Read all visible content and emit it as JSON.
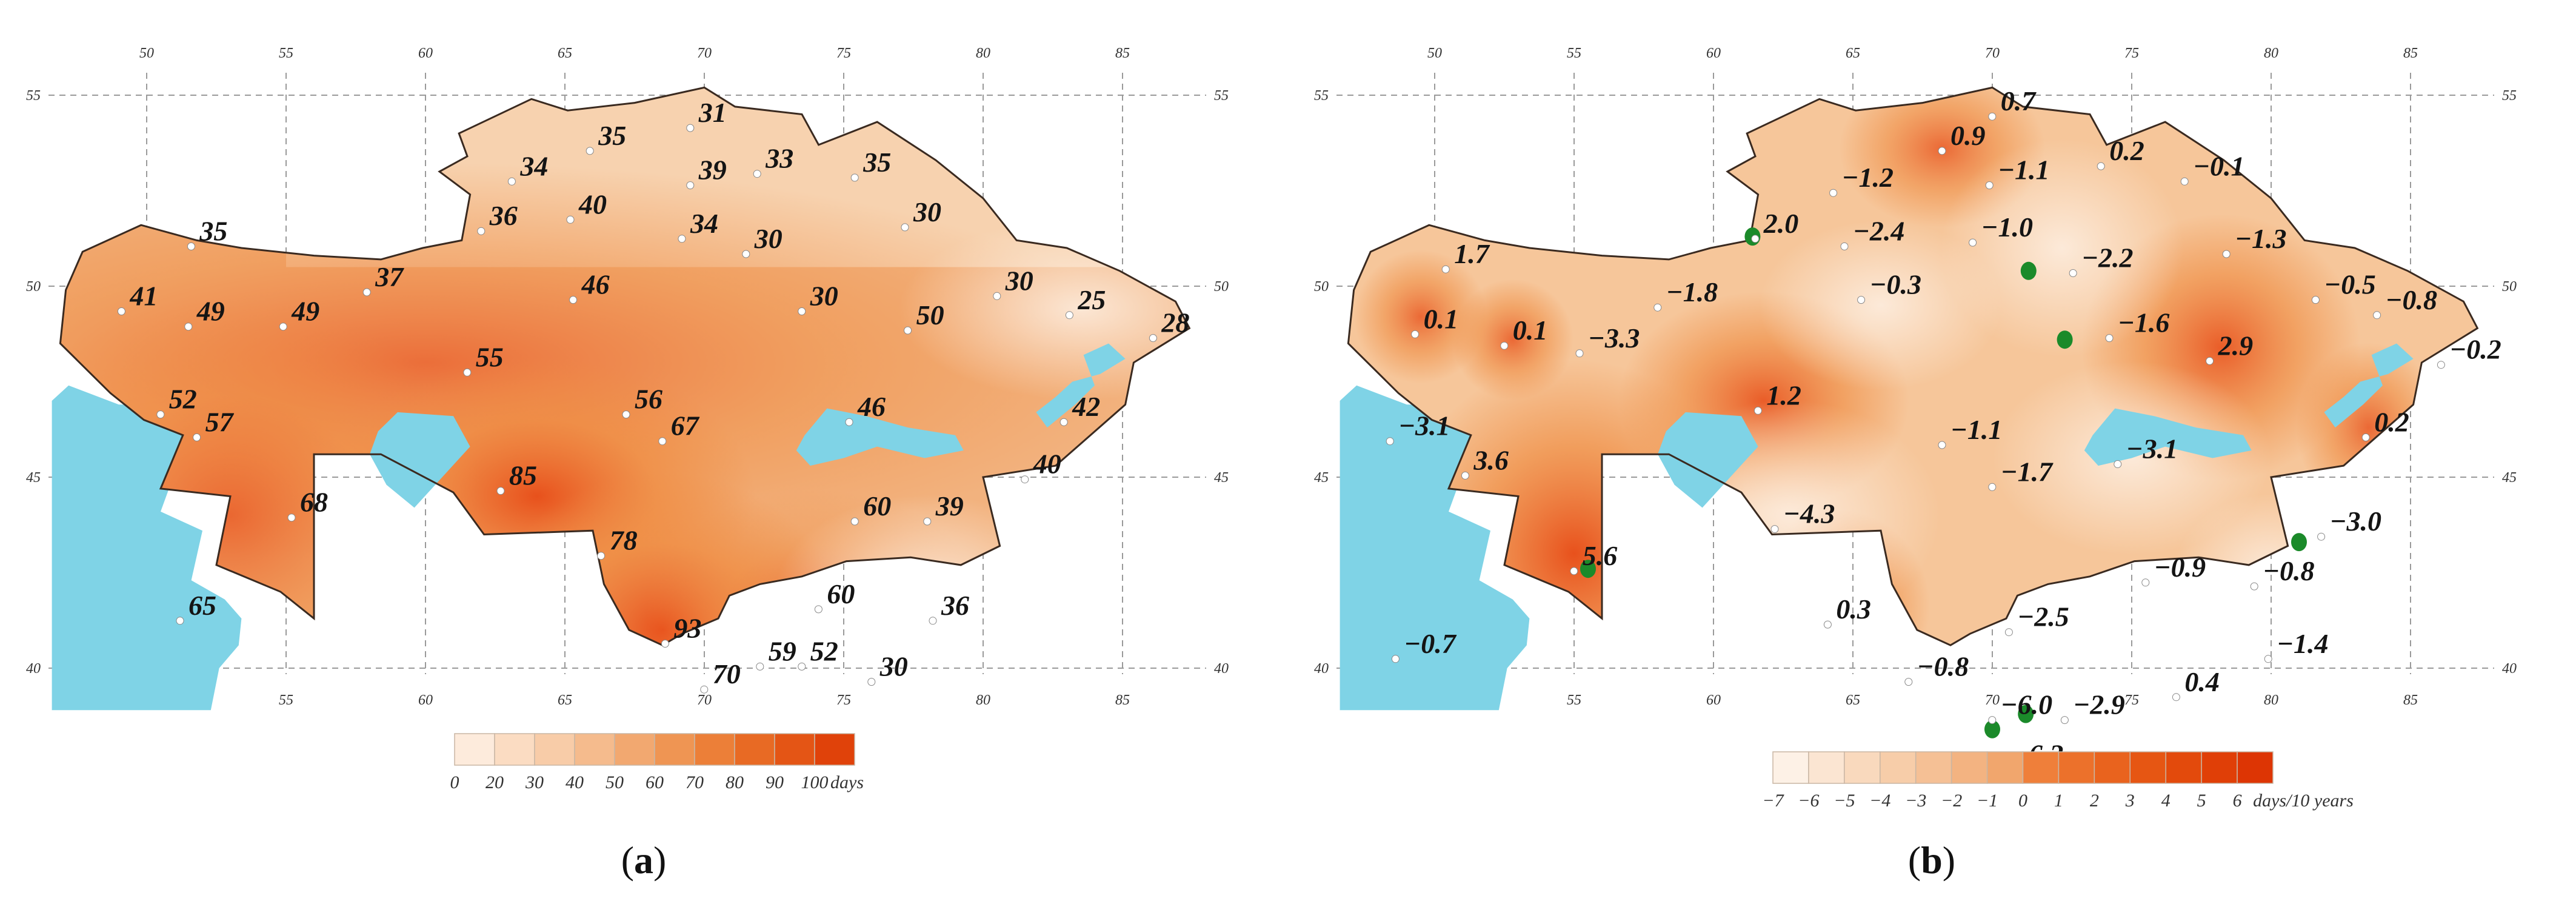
{
  "colors": {
    "water": "#7fd3e6",
    "land_light": "#f8dcc0",
    "land_mid": "#f2b27e",
    "land_strong": "#ef8c42",
    "land_red": "#e8511c",
    "border": "#3a2a20"
  },
  "panels": [
    {
      "caption_letter": "a",
      "grid": {
        "lon_top": [
          "50",
          "55",
          "60",
          "65",
          "70",
          "75",
          "80",
          "85"
        ],
        "lon_bottom": [
          "50",
          "55",
          "60",
          "65",
          "70",
          "75",
          "80",
          "85"
        ],
        "lat_left": [
          "55",
          "50",
          "45",
          "40"
        ],
        "lat_right": [
          "55",
          "50",
          "45",
          "40"
        ]
      },
      "legend": {
        "ticks": [
          "0",
          "20",
          "30",
          "40",
          "50",
          "60",
          "70",
          "80",
          "90",
          "100"
        ],
        "unit": "days",
        "colors": [
          "#fdebdc",
          "#fbdcc2",
          "#f8cca8",
          "#f5bb8d",
          "#f2a870",
          "#ef9553",
          "#ec7f38",
          "#e86a24",
          "#e45515",
          "#e0420a"
        ]
      },
      "stations": [
        {
          "label": "31",
          "lon": 69.8,
          "lat": 54.3
        },
        {
          "label": "35",
          "lon": 66.2,
          "lat": 53.7
        },
        {
          "label": "33",
          "lon": 72.2,
          "lat": 53.1
        },
        {
          "label": "35",
          "lon": 75.7,
          "lat": 53.0
        },
        {
          "label": "34",
          "lon": 63.4,
          "lat": 52.9
        },
        {
          "label": "39",
          "lon": 69.8,
          "lat": 52.8
        },
        {
          "label": "40",
          "lon": 65.5,
          "lat": 51.9
        },
        {
          "label": "36",
          "lon": 62.3,
          "lat": 51.6
        },
        {
          "label": "34",
          "lon": 69.5,
          "lat": 51.4
        },
        {
          "label": "30",
          "lon": 71.8,
          "lat": 51.0
        },
        {
          "label": "30",
          "lon": 77.5,
          "lat": 51.7
        },
        {
          "label": "35",
          "lon": 51.9,
          "lat": 51.2
        },
        {
          "label": "46",
          "lon": 65.6,
          "lat": 49.8
        },
        {
          "label": "37",
          "lon": 58.2,
          "lat": 50.0
        },
        {
          "label": "41",
          "lon": 49.4,
          "lat": 49.5
        },
        {
          "label": "49",
          "lon": 51.8,
          "lat": 49.1
        },
        {
          "label": "49",
          "lon": 55.2,
          "lat": 49.1
        },
        {
          "label": "30",
          "lon": 73.8,
          "lat": 49.5
        },
        {
          "label": "30",
          "lon": 80.8,
          "lat": 49.9
        },
        {
          "label": "25",
          "lon": 83.4,
          "lat": 49.4
        },
        {
          "label": "28",
          "lon": 86.4,
          "lat": 48.8
        },
        {
          "label": "50",
          "lon": 77.6,
          "lat": 49.0
        },
        {
          "label": "55",
          "lon": 61.8,
          "lat": 47.9
        },
        {
          "label": "52",
          "lon": 50.8,
          "lat": 46.8
        },
        {
          "label": "57",
          "lon": 52.1,
          "lat": 46.2
        },
        {
          "label": "56",
          "lon": 67.5,
          "lat": 46.8
        },
        {
          "label": "67",
          "lon": 68.8,
          "lat": 46.1
        },
        {
          "label": "46",
          "lon": 75.5,
          "lat": 46.6
        },
        {
          "label": "42",
          "lon": 83.2,
          "lat": 46.6
        },
        {
          "label": "85",
          "lon": 63.0,
          "lat": 44.8
        },
        {
          "label": "68",
          "lon": 55.5,
          "lat": 44.1
        },
        {
          "label": "60",
          "lon": 75.7,
          "lat": 44.0
        },
        {
          "label": "39",
          "lon": 78.3,
          "lat": 44.0
        },
        {
          "label": "40",
          "lon": 81.8,
          "lat": 45.1
        },
        {
          "label": "78",
          "lon": 66.6,
          "lat": 43.1
        },
        {
          "label": "65",
          "lon": 51.5,
          "lat": 41.4
        },
        {
          "label": "93",
          "lon": 68.9,
          "lat": 40.8
        },
        {
          "label": "60",
          "lon": 74.4,
          "lat": 41.7
        },
        {
          "label": "36",
          "lon": 78.5,
          "lat": 41.4
        },
        {
          "label": "70",
          "lon": 70.3,
          "lat": 39.6
        },
        {
          "label": "59",
          "lon": 72.3,
          "lat": 40.2
        },
        {
          "label": "52",
          "lon": 73.8,
          "lat": 40.2
        },
        {
          "label": "30",
          "lon": 76.3,
          "lat": 39.8
        }
      ]
    },
    {
      "caption_letter": "b",
      "grid": {
        "lon_top": [
          "50",
          "55",
          "60",
          "65",
          "70",
          "75",
          "80",
          "85"
        ],
        "lon_bottom": [
          "50",
          "55",
          "60",
          "65",
          "70",
          "75",
          "80",
          "85"
        ],
        "lat_left": [
          "55",
          "50",
          "45",
          "40"
        ],
        "lat_right": [
          "55",
          "50",
          "45",
          "40"
        ]
      },
      "legend": {
        "ticks": [
          "−7",
          "−6",
          "−5",
          "−4",
          "−3",
          "−2",
          "−1",
          "0",
          "1",
          "2",
          "3",
          "4",
          "5",
          "6"
        ],
        "unit": "days/10 years",
        "colors": [
          "#fdf1e6",
          "#fbe5d2",
          "#f9d9bd",
          "#f7cda9",
          "#f5c095",
          "#f3b381",
          "#f1a66d",
          "#ef7f3a",
          "#ec712b",
          "#e9631e",
          "#e65613",
          "#e34a0c",
          "#e03f07",
          "#dd3504"
        ]
      },
      "stations": [
        {
          "label": "0.9",
          "lon": 68.5,
          "lat": 53.7
        },
        {
          "label": "0.7",
          "lon": 70.3,
          "lat": 54.6
        },
        {
          "label": "0.2",
          "lon": 74.2,
          "lat": 53.3
        },
        {
          "label": "−1.2",
          "lon": 64.6,
          "lat": 52.6
        },
        {
          "label": "−1.1",
          "lon": 70.2,
          "lat": 52.8
        },
        {
          "label": "−0.1",
          "lon": 77.2,
          "lat": 52.9
        },
        {
          "label": "2.0",
          "lon": 61.8,
          "lat": 51.4
        },
        {
          "label": "−2.4",
          "lon": 65.0,
          "lat": 51.2
        },
        {
          "label": "−1.0",
          "lon": 69.6,
          "lat": 51.3
        },
        {
          "label": "−1.3",
          "lon": 78.7,
          "lat": 51.0
        },
        {
          "label": "−2.2",
          "lon": 73.2,
          "lat": 50.5
        },
        {
          "label": "1.7",
          "lon": 50.7,
          "lat": 50.6
        },
        {
          "label": "−1.8",
          "lon": 58.3,
          "lat": 49.6
        },
        {
          "label": "−0.3",
          "lon": 65.6,
          "lat": 49.8
        },
        {
          "label": "−0.5",
          "lon": 81.9,
          "lat": 49.8
        },
        {
          "label": "−0.8",
          "lon": 84.1,
          "lat": 49.4
        },
        {
          "label": "0.1",
          "lon": 49.6,
          "lat": 48.9
        },
        {
          "label": "0.1",
          "lon": 52.8,
          "lat": 48.6
        },
        {
          "label": "−3.3",
          "lon": 55.5,
          "lat": 48.4
        },
        {
          "label": "−1.6",
          "lon": 74.5,
          "lat": 48.8
        },
        {
          "label": "2.9",
          "lon": 78.1,
          "lat": 48.2
        },
        {
          "label": "−0.2",
          "lon": 86.4,
          "lat": 48.1
        },
        {
          "label": "1.2",
          "lon": 61.9,
          "lat": 46.9
        },
        {
          "label": "−3.1",
          "lon": 48.7,
          "lat": 46.1
        },
        {
          "label": "−1.1",
          "lon": 68.5,
          "lat": 46.0
        },
        {
          "label": "0.2",
          "lon": 83.7,
          "lat": 46.2
        },
        {
          "label": "3.6",
          "lon": 51.4,
          "lat": 45.2
        },
        {
          "label": "−3.1",
          "lon": 74.8,
          "lat": 45.5
        },
        {
          "label": "−1.7",
          "lon": 70.3,
          "lat": 44.9
        },
        {
          "label": "−4.3",
          "lon": 62.5,
          "lat": 43.8
        },
        {
          "label": "−3.0",
          "lon": 82.1,
          "lat": 43.6
        },
        {
          "label": "5.6",
          "lon": 55.3,
          "lat": 42.7
        },
        {
          "label": "−0.9",
          "lon": 75.8,
          "lat": 42.4
        },
        {
          "label": "−0.8",
          "lon": 79.7,
          "lat": 42.3
        },
        {
          "label": "0.3",
          "lon": 64.4,
          "lat": 41.3
        },
        {
          "label": "−2.5",
          "lon": 70.9,
          "lat": 41.1
        },
        {
          "label": "−0.7",
          "lon": 48.9,
          "lat": 40.4
        },
        {
          "label": "−1.4",
          "lon": 80.2,
          "lat": 40.4
        },
        {
          "label": "−0.8",
          "lon": 67.3,
          "lat": 39.8
        },
        {
          "label": "0.4",
          "lon": 76.9,
          "lat": 39.4
        },
        {
          "label": "−6.0",
          "lon": 70.3,
          "lat": 38.8
        },
        {
          "label": "−2.9",
          "lon": 72.9,
          "lat": 38.8
        },
        {
          "label": "−6.3",
          "lon": 70.7,
          "lat": 37.5
        }
      ],
      "green_markers": [
        {
          "lon": 61.4,
          "lat": 51.3
        },
        {
          "lon": 71.3,
          "lat": 50.4
        },
        {
          "lon": 72.6,
          "lat": 48.6
        },
        {
          "lon": 55.5,
          "lat": 42.6
        },
        {
          "lon": 81.0,
          "lat": 43.3
        },
        {
          "lon": 70.0,
          "lat": 38.4
        },
        {
          "lon": 71.2,
          "lat": 38.8
        }
      ]
    }
  ]
}
